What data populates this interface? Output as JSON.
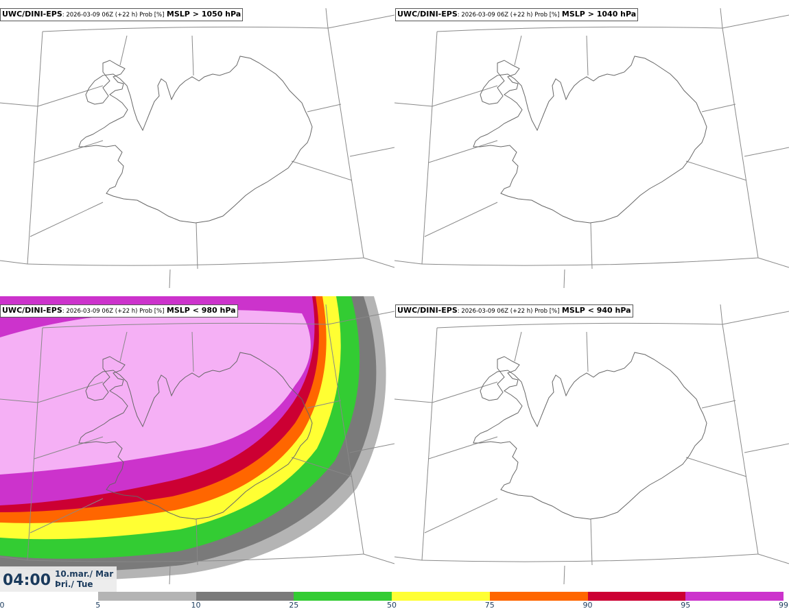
{
  "panels": [
    {
      "model": "UWC/DINI-EPS",
      "meta": ": 2026-03-09 06Z (+22 h) Prob [%]",
      "variable": "MSLP > 1050 hPa"
    },
    {
      "model": "UWC/DINI-EPS",
      "meta": ": 2026-03-09 06Z (+22 h) Prob [%]",
      "variable": "MSLP > 1040 hPa"
    },
    {
      "model": "UWC/DINI-EPS",
      "meta": ": 2026-03-09 06Z (+22 h) Prob [%]",
      "variable": "MSLP < 980 hPa"
    },
    {
      "model": "UWC/DINI-EPS",
      "meta": ": 2026-03-09 06Z (+22 h) Prob [%]",
      "variable": "MSLP < 940 hPa"
    }
  ],
  "valid_time": {
    "time": "04:00",
    "date_line1": "10.mar./ Mar",
    "date_line2": "Þri./ Tue"
  },
  "colorbar": {
    "ticks": [
      "0",
      "5",
      "10",
      "25",
      "50",
      "75",
      "90",
      "95",
      "99"
    ],
    "colors": [
      "#ffffff",
      "#b4b4b4",
      "#7a7a7a",
      "#33cc33",
      "#ffff33",
      "#ff6600",
      "#cc0033",
      "#cc33cc",
      "#f5b0f5"
    ]
  }
}
